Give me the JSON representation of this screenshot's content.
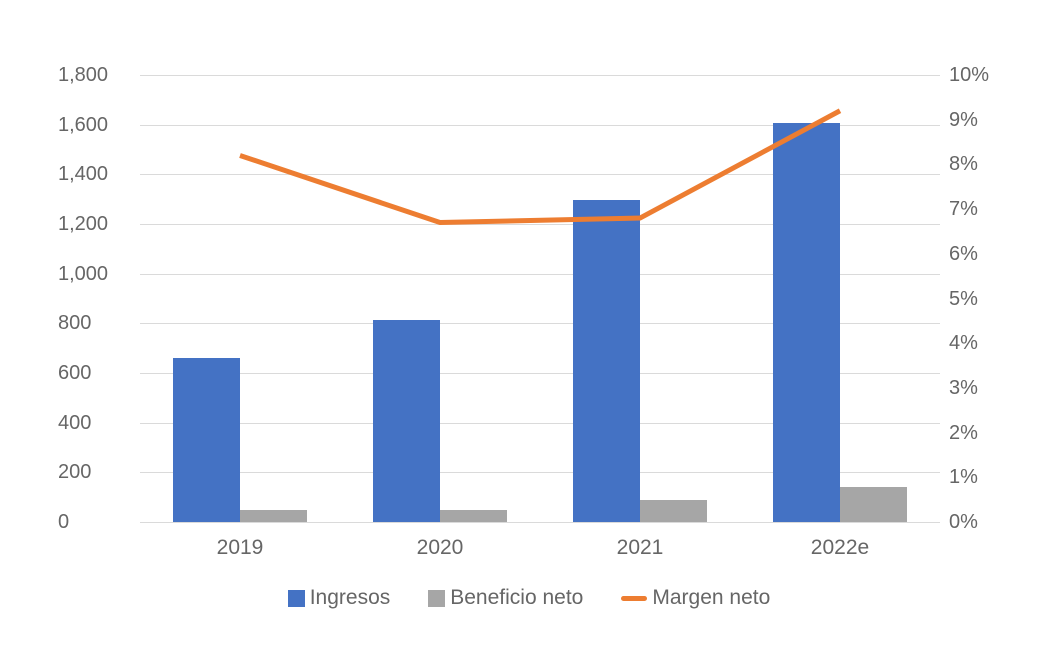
{
  "chart_data": {
    "type": "combo",
    "categories": [
      "2019",
      "2020",
      "2021",
      "2022e"
    ],
    "series": [
      {
        "name": "Ingresos",
        "type": "bar",
        "axis": "left",
        "color": "#4472C4",
        "values": [
          660,
          815,
          1295,
          1605
        ]
      },
      {
        "name": "Beneficio neto",
        "type": "bar",
        "axis": "left",
        "color": "#A6A6A6",
        "values": [
          50,
          50,
          90,
          140
        ]
      },
      {
        "name": "Margen neto",
        "type": "line",
        "axis": "right",
        "color": "#ED7D31",
        "values": [
          8.2,
          6.7,
          6.8,
          9.2
        ]
      }
    ],
    "left_axis": {
      "min": 0,
      "max": 1800,
      "step": 200,
      "tick_labels": [
        "0",
        "200",
        "400",
        "600",
        "800",
        "1,000",
        "1,200",
        "1,400",
        "1,600",
        "1,800"
      ]
    },
    "right_axis": {
      "min": 0,
      "max": 10,
      "step": 1,
      "tick_labels": [
        "0%",
        "1%",
        "2%",
        "3%",
        "4%",
        "5%",
        "6%",
        "7%",
        "8%",
        "9%",
        "10%"
      ]
    },
    "grid": true,
    "legend_position": "bottom",
    "background": "#ffffff",
    "gridline_color": "#dadada",
    "axis_text_color": "#666666"
  }
}
